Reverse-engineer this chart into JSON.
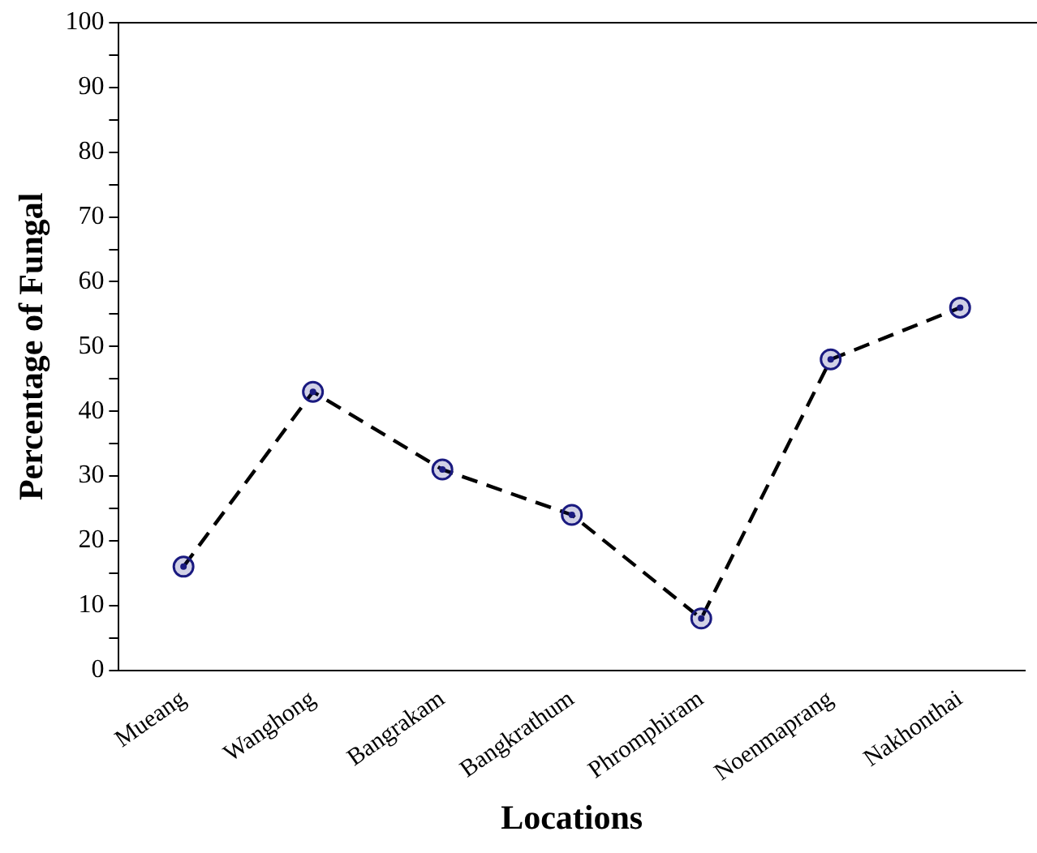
{
  "chart_data": {
    "type": "line",
    "xlabel": "Locations",
    "ylabel": "Percentage of Fungal",
    "categories": [
      "Mueang",
      "Wanghong",
      "Bangrakam",
      "Bangkrathum",
      "Phromphiram",
      "Noenmaprang",
      "Nakhonthai"
    ],
    "series": [
      {
        "color": "#1a1a80",
        "values": [
          16,
          43,
          31,
          24,
          8,
          48,
          56
        ]
      }
    ],
    "ylim": [
      0,
      100
    ],
    "yticks": [
      0,
      {
        "value": 5,
        "label": null
      },
      10,
      {
        "value": 15,
        "label": null
      },
      20,
      {
        "value": 25,
        "label": null
      },
      30,
      {
        "value": 35,
        "label": null
      },
      40,
      {
        "value": 45,
        "label": null
      },
      50,
      {
        "value": 55,
        "label": null
      },
      60,
      {
        "value": 65,
        "label": null
      },
      70,
      {
        "value": 75,
        "label": null
      },
      80,
      {
        "value": 85,
        "label": null
      },
      90,
      {
        "value": 95,
        "label": null
      },
      100
    ],
    "grid": false,
    "legend": false,
    "marker": "circle",
    "line_style": "dashed"
  }
}
